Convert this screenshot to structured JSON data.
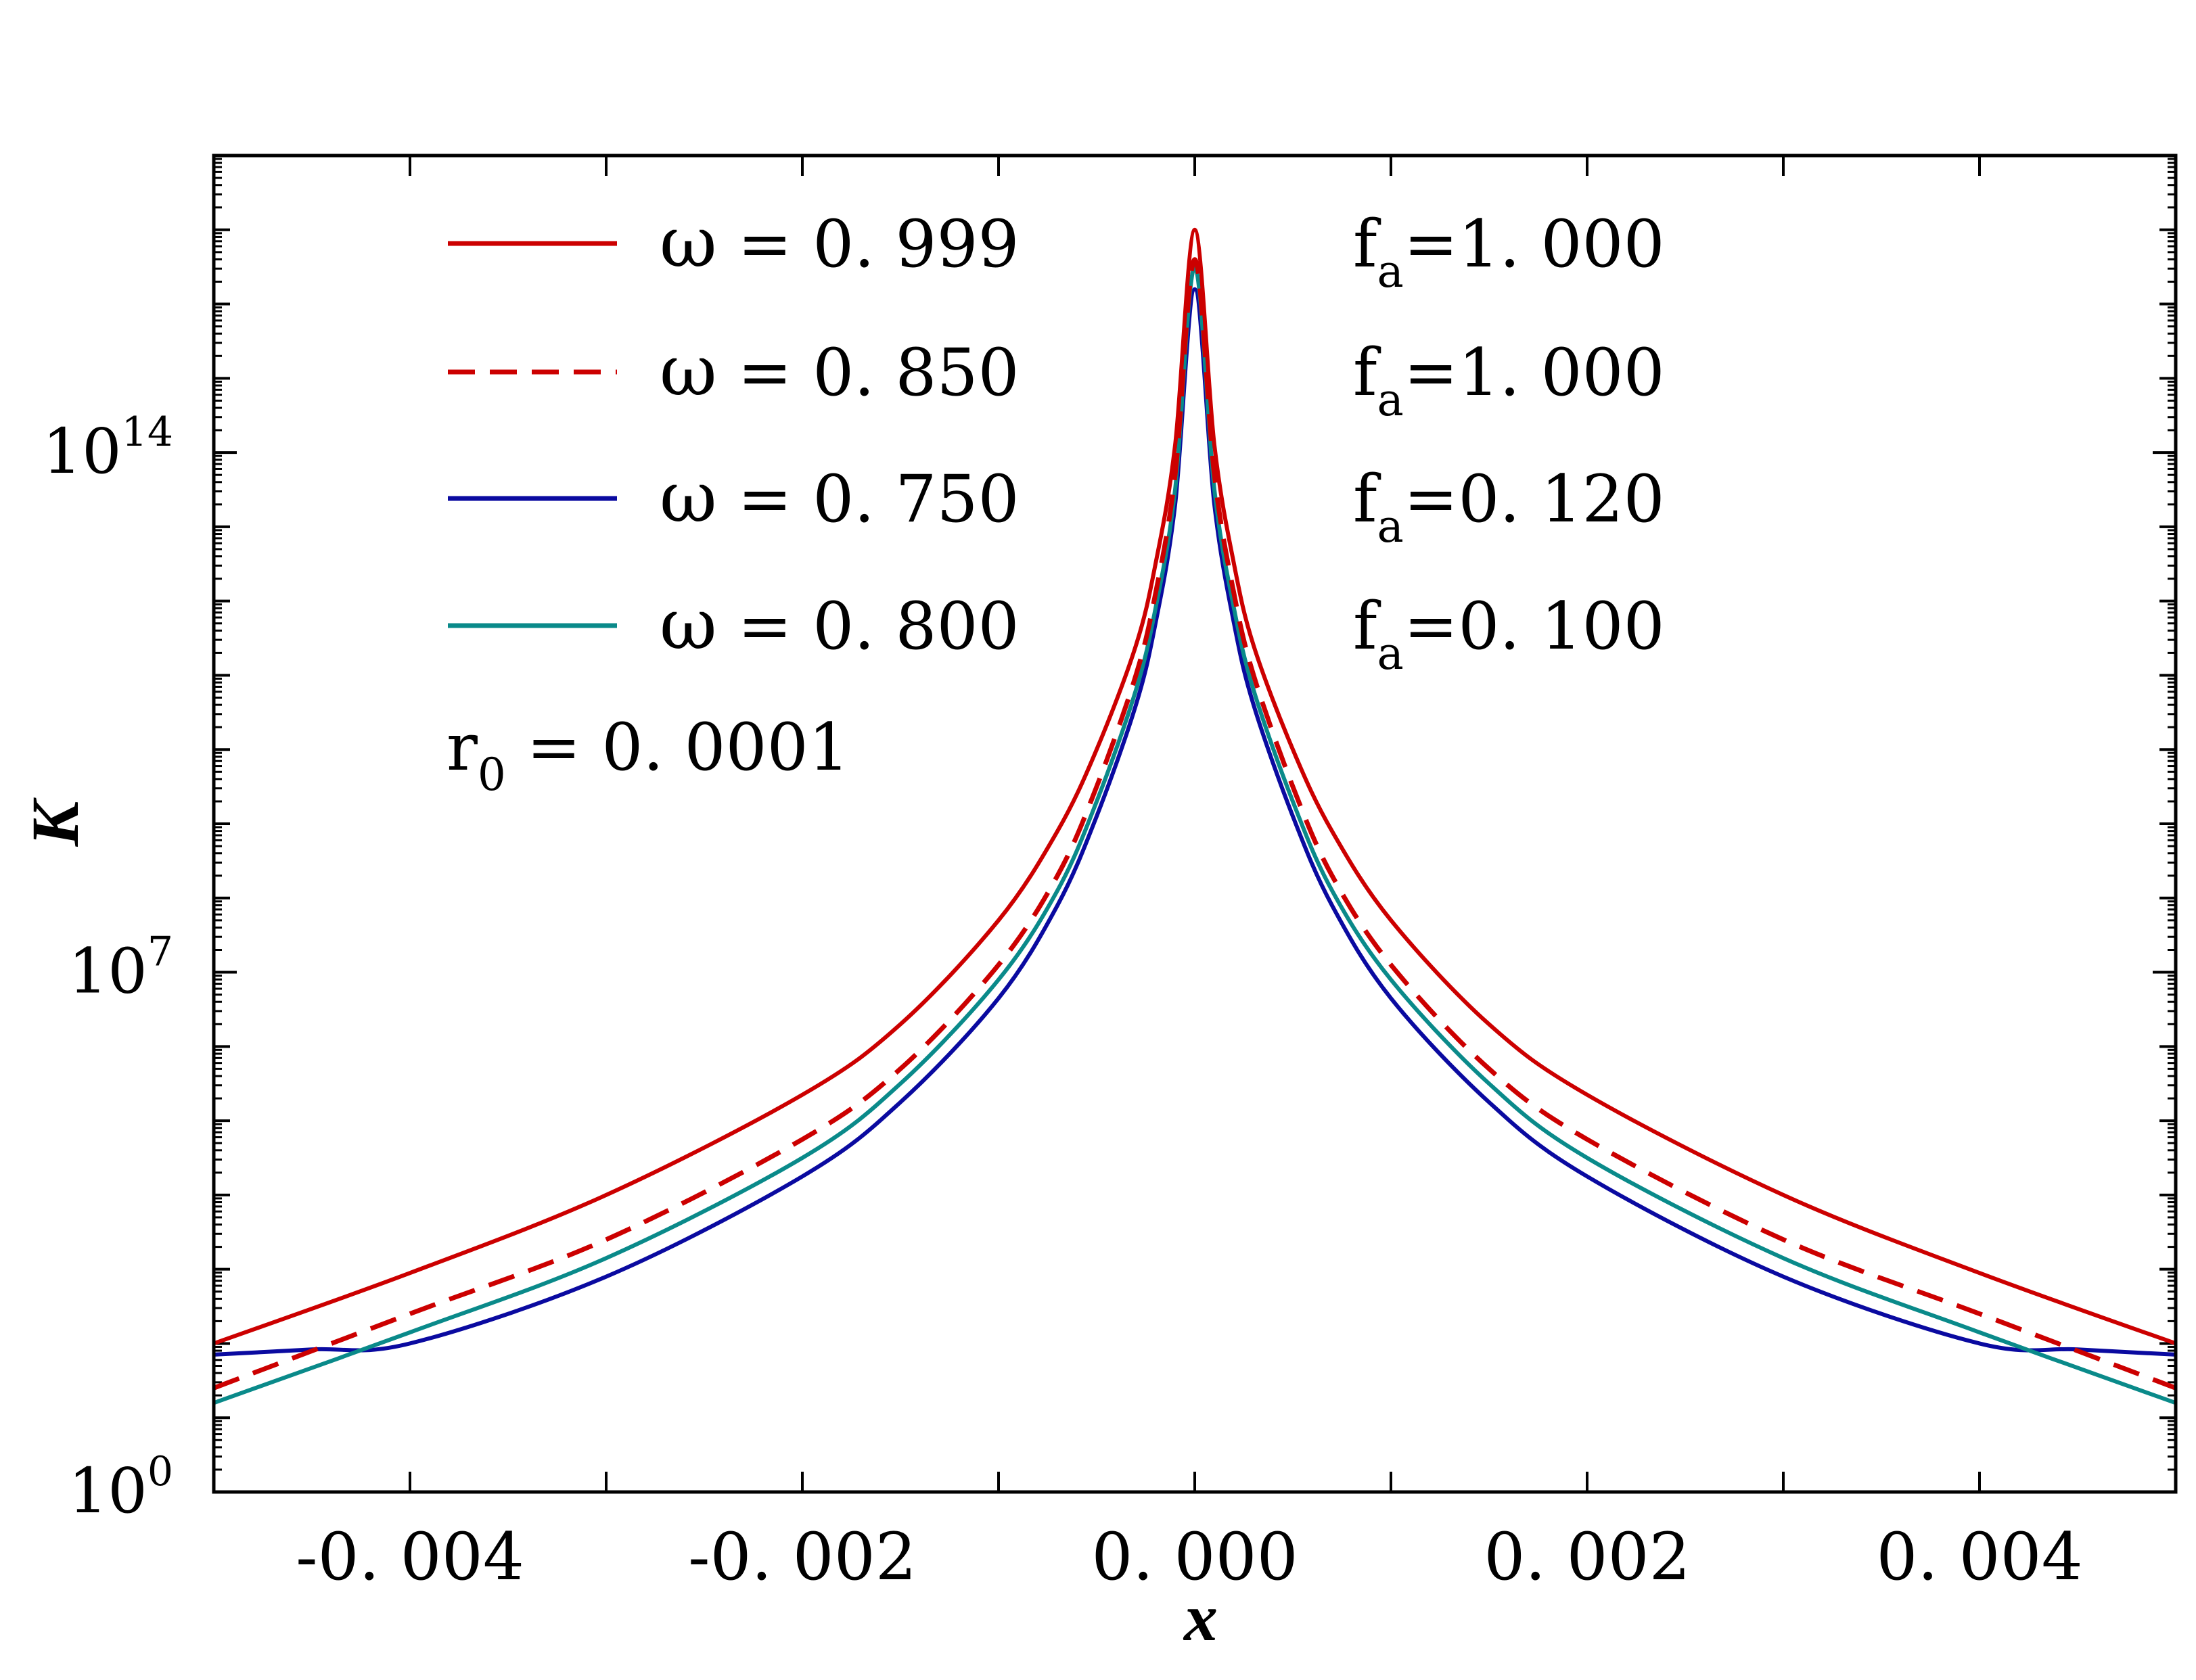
{
  "chart_data": {
    "type": "line",
    "xlabel": "x",
    "ylabel": "K",
    "xlim": [
      -0.005,
      0.005
    ],
    "ylim_log10": [
      0,
      18
    ],
    "yscale": "log",
    "x_ticks": [
      -0.004,
      -0.002,
      0.0,
      0.002,
      0.004
    ],
    "x_tick_labels": [
      "-0. 004",
      "-0. 002",
      "0. 000",
      "0. 002",
      "0. 004"
    ],
    "y_tick_labels": [
      {
        "base": "10",
        "exp": "0",
        "log10": 0
      },
      {
        "base": "10",
        "exp": "7",
        "log10": 7
      },
      {
        "base": "10",
        "exp": "14",
        "log10": 14
      }
    ],
    "annotation": {
      "symbol": "r",
      "sub": "0",
      "text": " = 0. 0001"
    },
    "series": [
      {
        "name": "ω = 0.999",
        "omega_label": "ω",
        "omega_value": " = 0. 999",
        "fa_sym": "f",
        "fa_sub": "a",
        "fa_value": "=1. 000",
        "color": "#cc0000",
        "dash": "solid",
        "x": [
          -0.005,
          -0.004,
          -0.003,
          -0.002,
          -0.0015,
          -0.001,
          -0.0007,
          -0.0005,
          -0.0003,
          -0.0002,
          -0.0001,
          0.0,
          0.0001,
          0.0002,
          0.0003,
          0.0005,
          0.0007,
          0.001,
          0.0015,
          0.002,
          0.003,
          0.004,
          0.005
        ],
        "log10_K": [
          2.0,
          2.95,
          4.0,
          5.35,
          6.3,
          7.7,
          8.9,
          10.0,
          11.4,
          12.5,
          14.1,
          17.0,
          14.1,
          12.5,
          11.4,
          10.0,
          8.9,
          7.7,
          6.3,
          5.35,
          4.0,
          2.95,
          2.0
        ]
      },
      {
        "name": "ω = 0.850",
        "omega_label": "ω",
        "omega_value": " = 0. 850",
        "fa_sym": "f",
        "fa_sub": "a",
        "fa_value": "=1. 000",
        "color": "#cc0000",
        "dash": "dashed",
        "x": [
          -0.005,
          -0.004,
          -0.003,
          -0.002,
          -0.0015,
          -0.001,
          -0.0007,
          -0.0005,
          -0.0003,
          -0.0002,
          -0.0001,
          0.0,
          0.0001,
          0.0002,
          0.0003,
          0.0005,
          0.0007,
          0.001,
          0.0015,
          0.002,
          0.003,
          0.004,
          0.005
        ],
        "log10_K": [
          1.4,
          2.4,
          3.4,
          4.75,
          5.7,
          7.1,
          8.3,
          9.5,
          11.0,
          12.1,
          13.7,
          16.6,
          13.7,
          12.1,
          11.0,
          9.5,
          8.3,
          7.1,
          5.7,
          4.75,
          3.4,
          2.4,
          1.4
        ]
      },
      {
        "name": "ω = 0.750",
        "omega_label": "ω",
        "omega_value": " = 0. 750",
        "fa_sym": "f",
        "fa_sub": "a",
        "fa_value": "=0. 120",
        "color": "#0a0aa0",
        "dash": "solid",
        "x": [
          -0.005,
          -0.0045,
          -0.004,
          -0.003,
          -0.002,
          -0.0015,
          -0.001,
          -0.0007,
          -0.0005,
          -0.0003,
          -0.0002,
          -0.0001,
          0.0,
          0.0001,
          0.0002,
          0.0003,
          0.0005,
          0.0007,
          0.001,
          0.0015,
          0.002,
          0.003,
          0.004,
          0.0045,
          0.005
        ],
        "log10_K": [
          1.85,
          1.92,
          2.0,
          2.9,
          4.25,
          5.25,
          6.65,
          7.9,
          9.1,
          10.6,
          11.7,
          13.3,
          16.2,
          13.3,
          11.7,
          10.6,
          9.1,
          7.9,
          6.65,
          5.25,
          4.25,
          2.9,
          2.0,
          1.92,
          1.85
        ]
      },
      {
        "name": "ω = 0.800",
        "omega_label": "ω",
        "omega_value": " = 0. 800",
        "fa_sym": "f",
        "fa_sub": "a",
        "fa_value": "=0. 100",
        "color": "#0a8a8a",
        "dash": "solid",
        "x": [
          -0.005,
          -0.004,
          -0.003,
          -0.002,
          -0.0015,
          -0.001,
          -0.0007,
          -0.0005,
          -0.0003,
          -0.0002,
          -0.0001,
          0.0,
          0.0001,
          0.0002,
          0.0003,
          0.0005,
          0.0007,
          0.001,
          0.0015,
          0.002,
          0.003,
          0.004,
          0.005
        ],
        "log10_K": [
          1.2,
          2.15,
          3.15,
          4.5,
          5.5,
          6.9,
          8.1,
          9.3,
          10.8,
          11.9,
          13.5,
          16.5,
          13.5,
          11.9,
          10.8,
          9.3,
          8.1,
          6.9,
          5.5,
          4.5,
          3.15,
          2.15,
          1.2
        ]
      }
    ]
  }
}
